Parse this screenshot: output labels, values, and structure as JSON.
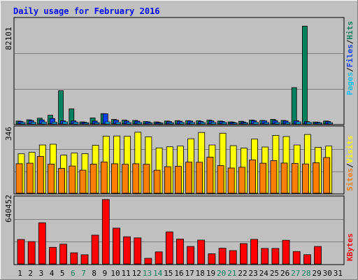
{
  "chart_data": {
    "type": "bar",
    "title": "Daily usage for February 2016",
    "days": [
      "1",
      "2",
      "3",
      "4",
      "5",
      "6",
      "7",
      "8",
      "9",
      "10",
      "11",
      "12",
      "13",
      "14",
      "15",
      "16",
      "17",
      "18",
      "19",
      "20",
      "21",
      "22",
      "23",
      "24",
      "25",
      "26",
      "27",
      "28",
      "29",
      "30",
      "31"
    ],
    "weekend_days": [
      6,
      7,
      13,
      14,
      20,
      21,
      27,
      28
    ],
    "panels": {
      "hits_files_pages": {
        "ymax_label": "82101",
        "ymax": 82101,
        "legend": [
          "Pages",
          "/",
          "Files",
          "/",
          "Hits"
        ],
        "series": [
          {
            "name": "Hits",
            "color": "#00805c",
            "values": [
              2300,
              3300,
              4600,
              6900,
              26500,
              12000,
              1600,
              4800,
              8200,
              3600,
              3000,
              2800,
              1900,
              1600,
              2300,
              2600,
              2600,
              2500,
              3000,
              2300,
              1600,
              2100,
              3000,
              2800,
              3700,
              2800,
              29000,
              78000,
              1500,
              2300,
              0
            ]
          },
          {
            "name": "Files",
            "color": "#0040ff",
            "values": [
              1900,
              2700,
              3200,
              4300,
              2400,
              2400,
              1300,
              2300,
              8100,
              3000,
              2300,
              2200,
              1700,
              1200,
              1900,
              2100,
              2300,
              1900,
              2400,
              2000,
              1300,
              1500,
              2600,
              2400,
              2700,
              2300,
              2500,
              1800,
              1300,
              1900,
              0
            ]
          },
          {
            "name": "Pages",
            "color": "#00c0ff",
            "values": [
              1100,
              1300,
              1500,
              1300,
              1600,
              1400,
              900,
              1000,
              1600,
              1300,
              1200,
              1100,
              800,
              700,
              1000,
              1100,
              1200,
              1100,
              1200,
              1100,
              800,
              900,
              1300,
              1100,
              1200,
              1100,
              1600,
              1300,
              900,
              1000,
              0
            ]
          }
        ]
      },
      "visits_sites": {
        "ymax_label": "346",
        "ymax": 346,
        "legend": [
          "Sites",
          "/",
          "Visits"
        ],
        "series": [
          {
            "name": "Visits",
            "color": "#ffff00",
            "values": [
              214,
              222,
              262,
              266,
              207,
              218,
              215,
              260,
              310,
              311,
              309,
              331,
              306,
              246,
              252,
              256,
              296,
              330,
              262,
              326,
              258,
              245,
              294,
              251,
              314,
              308,
              262,
              319,
              249,
              256,
              0
            ]
          },
          {
            "name": "Sites",
            "color": "#ff8000",
            "values": [
              160,
              163,
              200,
              158,
              135,
              148,
              125,
              158,
              170,
              160,
              157,
              160,
              157,
              125,
              144,
              146,
              169,
              168,
              196,
              150,
              137,
              141,
              181,
              163,
              177,
              164,
              162,
              159,
              165,
              194,
              0
            ]
          }
        ]
      },
      "kbytes": {
        "ymax_label": "640452",
        "ymax": 640452,
        "legend": [
          "KBytes"
        ],
        "series": [
          {
            "name": "KBytes",
            "color": "#ff0000",
            "values": [
              243000,
              222000,
              409000,
              165000,
              196000,
              111000,
              91000,
              286000,
              640452,
              356000,
              270000,
              259000,
              56000,
              120000,
              319000,
              247000,
              173000,
              237000,
              101000,
              156000,
              132000,
              202000,
              244000,
              154000,
              154000,
              235000,
              123000,
              92000,
              173000,
              0,
              0
            ]
          }
        ]
      }
    },
    "colors": {
      "title": "#0000ff",
      "weekday_tick": "#000000",
      "weekend_tick": "#00805c",
      "background": "#c0c0c0",
      "grid": "#808080"
    }
  }
}
